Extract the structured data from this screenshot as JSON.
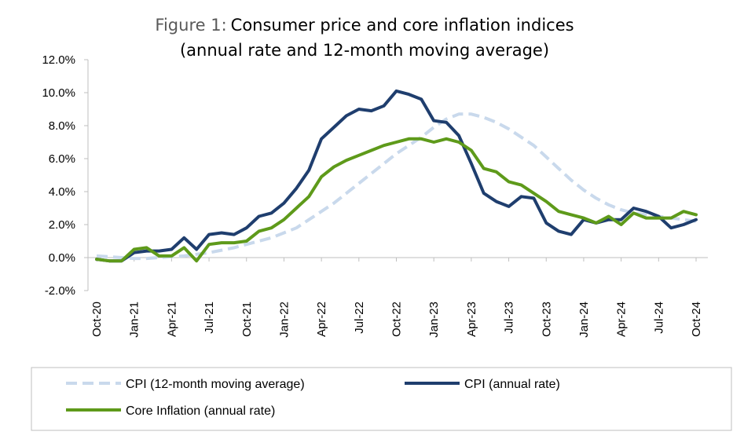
{
  "chart_data": {
    "type": "line",
    "title_prefix": "Figure 1:",
    "title_line1": "Consumer price and core inflation indices",
    "title_line2": "(annual rate and 12-month moving average)",
    "xlabel": "",
    "ylabel": "",
    "ylim": [
      -2.0,
      12.0
    ],
    "y_ticks": [
      "-2.0%",
      "0.0%",
      "2.0%",
      "4.0%",
      "6.0%",
      "8.0%",
      "10.0%",
      "12.0%"
    ],
    "x_ticks": [
      "Oct-20",
      "Jan-21",
      "Apr-21",
      "Jul-21",
      "Oct-21",
      "Jan-22",
      "Apr-22",
      "Jul-22",
      "Oct-22",
      "Jan-23",
      "Apr-23",
      "Jul-23",
      "Oct-23",
      "Jan-24",
      "Apr-24",
      "Jul-24",
      "Oct-24"
    ],
    "grid": false,
    "legend_position": "bottom",
    "x": [
      "Oct-20",
      "Nov-20",
      "Dec-20",
      "Jan-21",
      "Feb-21",
      "Mar-21",
      "Apr-21",
      "May-21",
      "Jun-21",
      "Jul-21",
      "Aug-21",
      "Sep-21",
      "Oct-21",
      "Nov-21",
      "Dec-21",
      "Jan-22",
      "Feb-22",
      "Mar-22",
      "Apr-22",
      "May-22",
      "Jun-22",
      "Jul-22",
      "Aug-22",
      "Sep-22",
      "Oct-22",
      "Nov-22",
      "Dec-22",
      "Jan-23",
      "Feb-23",
      "Mar-23",
      "Apr-23",
      "May-23",
      "Jun-23",
      "Jul-23",
      "Aug-23",
      "Sep-23",
      "Oct-23",
      "Nov-23",
      "Dec-23",
      "Jan-24",
      "Feb-24",
      "Mar-24",
      "Apr-24",
      "May-24",
      "Jun-24",
      "Jul-24",
      "Aug-24",
      "Sep-24",
      "Oct-24"
    ],
    "series": [
      {
        "name": "CPI (12-month moving average)",
        "color": "#c9d9ec",
        "style": "dashed",
        "values": [
          0.1,
          0.05,
          0.0,
          -0.05,
          -0.05,
          0.0,
          0.05,
          0.1,
          0.2,
          0.3,
          0.45,
          0.6,
          0.8,
          1.0,
          1.2,
          1.5,
          1.8,
          2.3,
          2.8,
          3.3,
          3.9,
          4.5,
          5.1,
          5.7,
          6.3,
          6.8,
          7.3,
          7.9,
          8.4,
          8.7,
          8.7,
          8.5,
          8.2,
          7.8,
          7.3,
          6.8,
          6.1,
          5.4,
          4.7,
          4.1,
          3.6,
          3.2,
          2.9,
          2.7,
          2.6,
          2.5,
          2.4,
          2.3,
          2.2
        ]
      },
      {
        "name": "CPI (annual rate)",
        "color": "#1f3e6e",
        "style": "solid",
        "values": [
          -0.1,
          -0.2,
          -0.2,
          0.3,
          0.4,
          0.4,
          0.5,
          1.2,
          0.5,
          1.4,
          1.5,
          1.4,
          1.8,
          2.5,
          2.7,
          3.3,
          4.2,
          5.3,
          7.2,
          7.9,
          8.6,
          9.0,
          8.9,
          9.2,
          10.1,
          9.9,
          9.6,
          8.3,
          8.2,
          7.4,
          5.7,
          3.9,
          3.4,
          3.1,
          3.7,
          3.6,
          2.1,
          1.6,
          1.4,
          2.3,
          2.1,
          2.3,
          2.3,
          3.0,
          2.8,
          2.5,
          1.8,
          2.0,
          2.3
        ]
      },
      {
        "name": "Core Inflation (annual rate)",
        "color": "#5e9a1a",
        "style": "solid",
        "values": [
          -0.1,
          -0.2,
          -0.2,
          0.5,
          0.6,
          0.1,
          0.1,
          0.6,
          -0.2,
          0.8,
          0.9,
          0.9,
          1.0,
          1.6,
          1.8,
          2.3,
          3.0,
          3.7,
          4.9,
          5.5,
          5.9,
          6.2,
          6.5,
          6.8,
          7.0,
          7.2,
          7.2,
          7.0,
          7.2,
          7.0,
          6.5,
          5.4,
          5.2,
          4.6,
          4.4,
          3.9,
          3.4,
          2.8,
          2.6,
          2.4,
          2.1,
          2.5,
          2.0,
          2.7,
          2.4,
          2.4,
          2.4,
          2.8,
          2.6
        ]
      }
    ]
  }
}
